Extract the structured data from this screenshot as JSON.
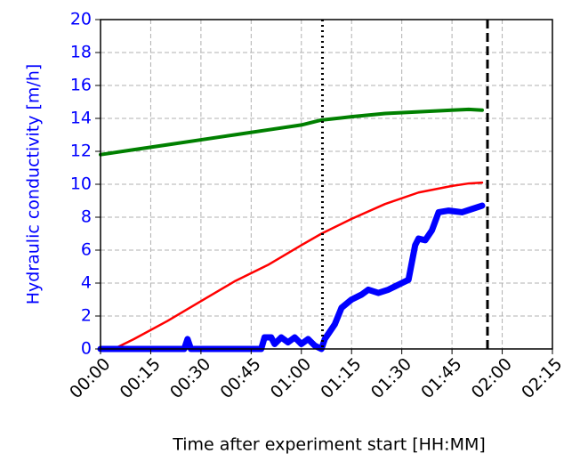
{
  "chart_data": {
    "type": "line",
    "x_label": "Time after experiment start [HH:MM]",
    "y_label": "Hydraulic conductivity [m/h]",
    "axis_color": "#0000ff",
    "xlim": [
      0,
      135
    ],
    "ylim": [
      0,
      20
    ],
    "xticks": [
      {
        "value": 0,
        "label": "00:00"
      },
      {
        "value": 15,
        "label": "00:15"
      },
      {
        "value": 30,
        "label": "00:30"
      },
      {
        "value": 45,
        "label": "00:45"
      },
      {
        "value": 60,
        "label": "01:00"
      },
      {
        "value": 75,
        "label": "01:15"
      },
      {
        "value": 90,
        "label": "01:30"
      },
      {
        "value": 105,
        "label": "01:45"
      },
      {
        "value": 120,
        "label": "02:00"
      },
      {
        "value": 135,
        "label": "02:15"
      }
    ],
    "yticks": [
      0,
      2,
      4,
      6,
      8,
      10,
      12,
      14,
      16,
      18,
      20
    ],
    "grid": true,
    "vlines": [
      {
        "x": 66.3,
        "style": "dotted"
      },
      {
        "x": 115.6,
        "style": "dashed"
      }
    ],
    "series": [
      {
        "color": "#008000",
        "width": 4,
        "x": [
          0,
          10,
          20,
          30,
          40,
          50,
          60,
          66,
          75,
          85,
          95,
          105,
          110,
          114
        ],
        "values": [
          11.8,
          12.1,
          12.4,
          12.7,
          13.0,
          13.3,
          13.6,
          13.9,
          14.1,
          14.3,
          14.4,
          14.5,
          14.55,
          14.5
        ]
      },
      {
        "color": "#ff0000",
        "width": 2.5,
        "x": [
          4,
          10,
          20,
          30,
          40,
          50,
          60,
          66,
          75,
          85,
          95,
          105,
          110,
          114
        ],
        "values": [
          0,
          0.6,
          1.7,
          2.9,
          4.1,
          5.1,
          6.3,
          7.0,
          7.9,
          8.8,
          9.5,
          9.9,
          10.05,
          10.1
        ]
      },
      {
        "color": "#0000ff",
        "width": 7,
        "x": [
          0,
          25,
          26,
          27,
          48,
          49,
          51,
          52,
          54,
          56,
          58,
          60,
          62,
          64,
          66,
          67,
          70,
          72,
          75,
          78,
          80,
          83,
          86,
          88,
          90,
          92,
          94,
          95,
          97,
          99,
          101,
          104,
          108,
          111,
          114
        ],
        "values": [
          0,
          0,
          0.6,
          0,
          0,
          0.7,
          0.7,
          0.3,
          0.7,
          0.4,
          0.7,
          0.3,
          0.6,
          0.2,
          0,
          0.6,
          1.5,
          2.5,
          3.0,
          3.3,
          3.6,
          3.4,
          3.6,
          3.8,
          4.0,
          4.2,
          6.3,
          6.7,
          6.6,
          7.2,
          8.3,
          8.4,
          8.3,
          8.5,
          8.7
        ]
      }
    ]
  }
}
